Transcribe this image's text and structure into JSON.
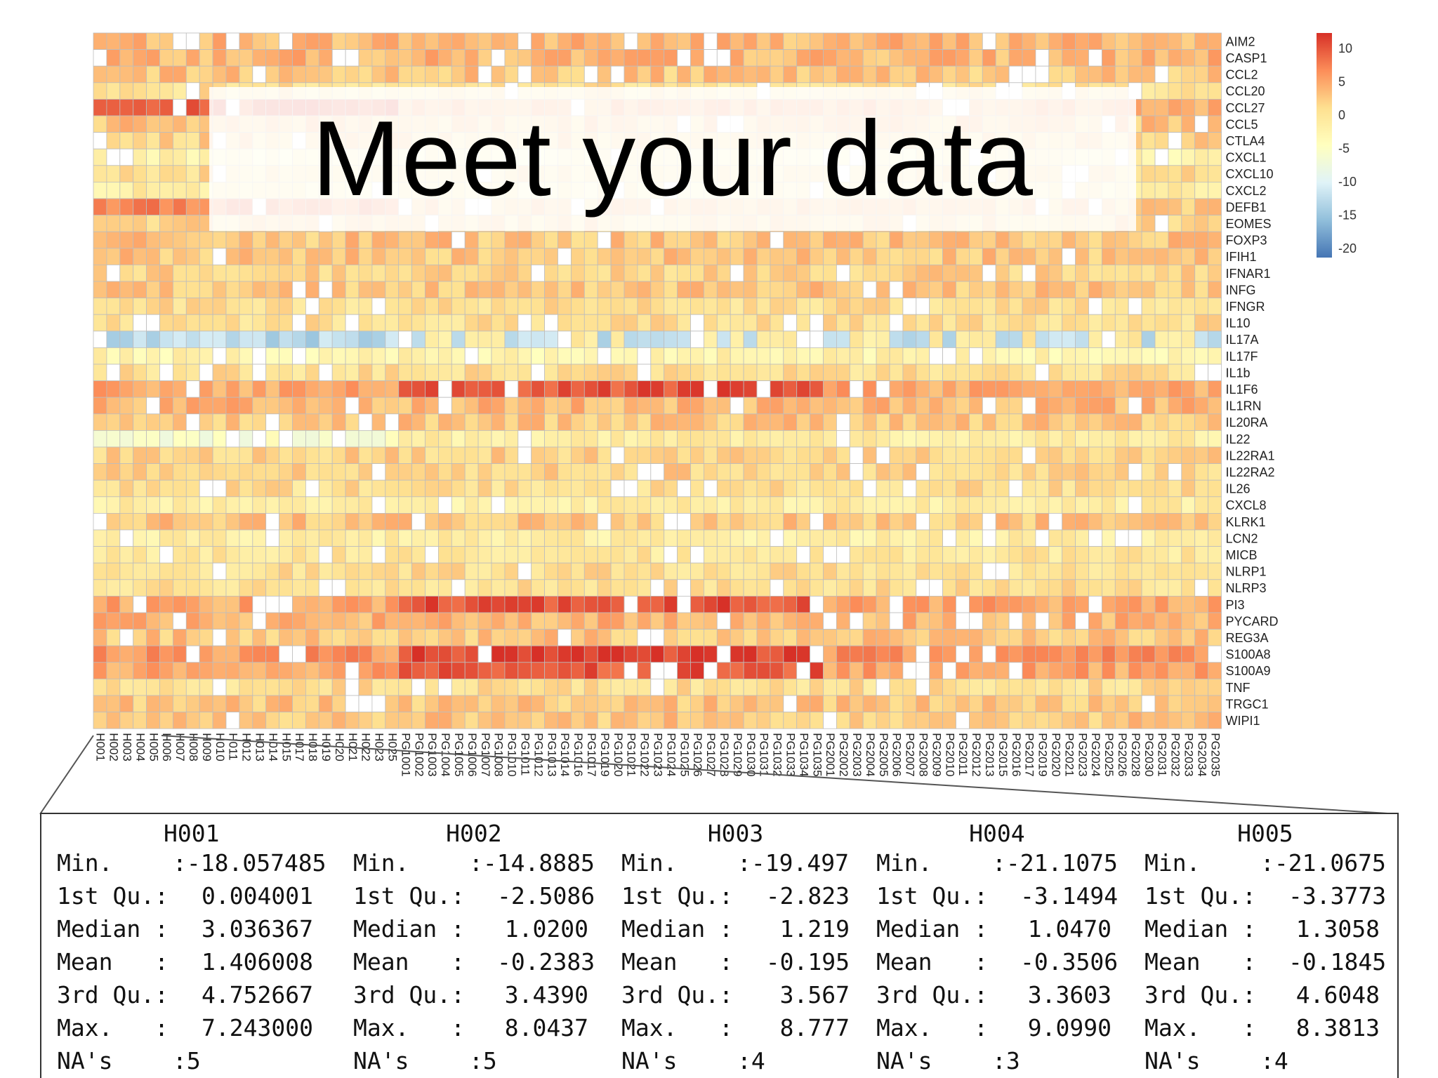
{
  "overlay": {
    "title": "Meet your data"
  },
  "chart_data": {
    "type": "heatmap",
    "rows": [
      "AIM2",
      "CASP1",
      "CCL2",
      "CCL20",
      "CCL27",
      "CCL5",
      "CTLA4",
      "CXCL1",
      "CXCL10",
      "CXCL2",
      "DEFB1",
      "EOMES",
      "FOXP3",
      "IFIH1",
      "IFNAR1",
      "INFG",
      "IFNGR",
      "IL10",
      "IL17A",
      "IL17F",
      "IL1b",
      "IL1F6",
      "IL1RN",
      "IL20RA",
      "IL22",
      "IL22RA1",
      "IL22RA2",
      "IL26",
      "CXCL8",
      "KLRK1",
      "LCN2",
      "MICB",
      "NLRP1",
      "NLRP3",
      "PI3",
      "PYCARD",
      "REG3A",
      "S100A8",
      "S100A9",
      "TNF",
      "TRGC1",
      "WIPI1"
    ],
    "columns": [
      "H001",
      "H002",
      "H003",
      "H004",
      "H005",
      "H006",
      "H007",
      "H008",
      "H009",
      "H010",
      "H011",
      "H012",
      "H013",
      "H014",
      "H015",
      "H017",
      "H018",
      "H019",
      "H020",
      "H021",
      "H022",
      "H023",
      "H025",
      "PG1001",
      "PG1002",
      "PG1003",
      "PG1004",
      "PG1005",
      "PG1006",
      "PG1007",
      "PG1008",
      "PG1010",
      "PG1011",
      "PG1012",
      "PG1013",
      "PG1014",
      "PG1016",
      "PG1017",
      "PG1019",
      "PG1020",
      "PG1021",
      "PG1022",
      "PG1023",
      "PG1024",
      "PG1025",
      "PG1026",
      "PG1027",
      "PG1028",
      "PG1029",
      "PG1030",
      "PG1031",
      "PG1032",
      "PG1033",
      "PG1034",
      "PG1035",
      "PG2001",
      "PG2002",
      "PG2003",
      "PG2004",
      "PG2005",
      "PG2006",
      "PG2007",
      "PG2008",
      "PG2009",
      "PG2010",
      "PG2011",
      "PG2012",
      "PG2013",
      "PG2015",
      "PG2016",
      "PG2017",
      "PG2019",
      "PG2020",
      "PG2021",
      "PG2023",
      "PG2024",
      "PG2025",
      "PG2026",
      "PG2028",
      "PG2030",
      "PG2031",
      "PG2032",
      "PG2033",
      "PG2034",
      "PG2035"
    ],
    "value_range": [
      -20,
      12
    ],
    "colorbar_ticks": [
      "10",
      "5",
      "0",
      "-5",
      "-10",
      "-15",
      "-20"
    ],
    "missing_color": "#ffffff",
    "color_scale": [
      "#4575b4",
      "#91bfdb",
      "#e0f3f8",
      "#ffffbf",
      "#fee090",
      "#fc8d59",
      "#d73027"
    ]
  },
  "summary": [
    {
      "name": "H001",
      "min": ":-18.057485",
      "q1": "0.004001",
      "median": "3.036367",
      "mean": "1.406008",
      "q3": "4.752667",
      "max": "7.243000",
      "na": ":5"
    },
    {
      "name": "H002",
      "min": ":-14.8885",
      "q1": "-2.5086",
      "median": "1.0200",
      "mean": "-0.2383",
      "q3": "3.4390",
      "max": "8.0437",
      "na": ":5"
    },
    {
      "name": "H003",
      "min": ":-19.497",
      "q1": "-2.823",
      "median": "1.219",
      "mean": "-0.195",
      "q3": "3.567",
      "max": "8.777",
      "na": ":4"
    },
    {
      "name": "H004",
      "min": ":-21.1075",
      "q1": "-3.1494",
      "median": "1.0470",
      "mean": "-0.3506",
      "q3": "3.3603",
      "max": "9.0990",
      "na": ":3"
    },
    {
      "name": "H005",
      "min": ":-21.0675",
      "q1": "-3.3773",
      "median": "1.3058",
      "mean": "-0.1845",
      "q3": "4.6048",
      "max": "8.3813",
      "na": ":4"
    }
  ],
  "summary_labels": {
    "min": "Min.   ",
    "q1": "1st Qu.:",
    "median": "Median :",
    "mean": "Mean   :",
    "q3": "3rd Qu.:",
    "max": "Max.   :",
    "na": "NA's   "
  }
}
